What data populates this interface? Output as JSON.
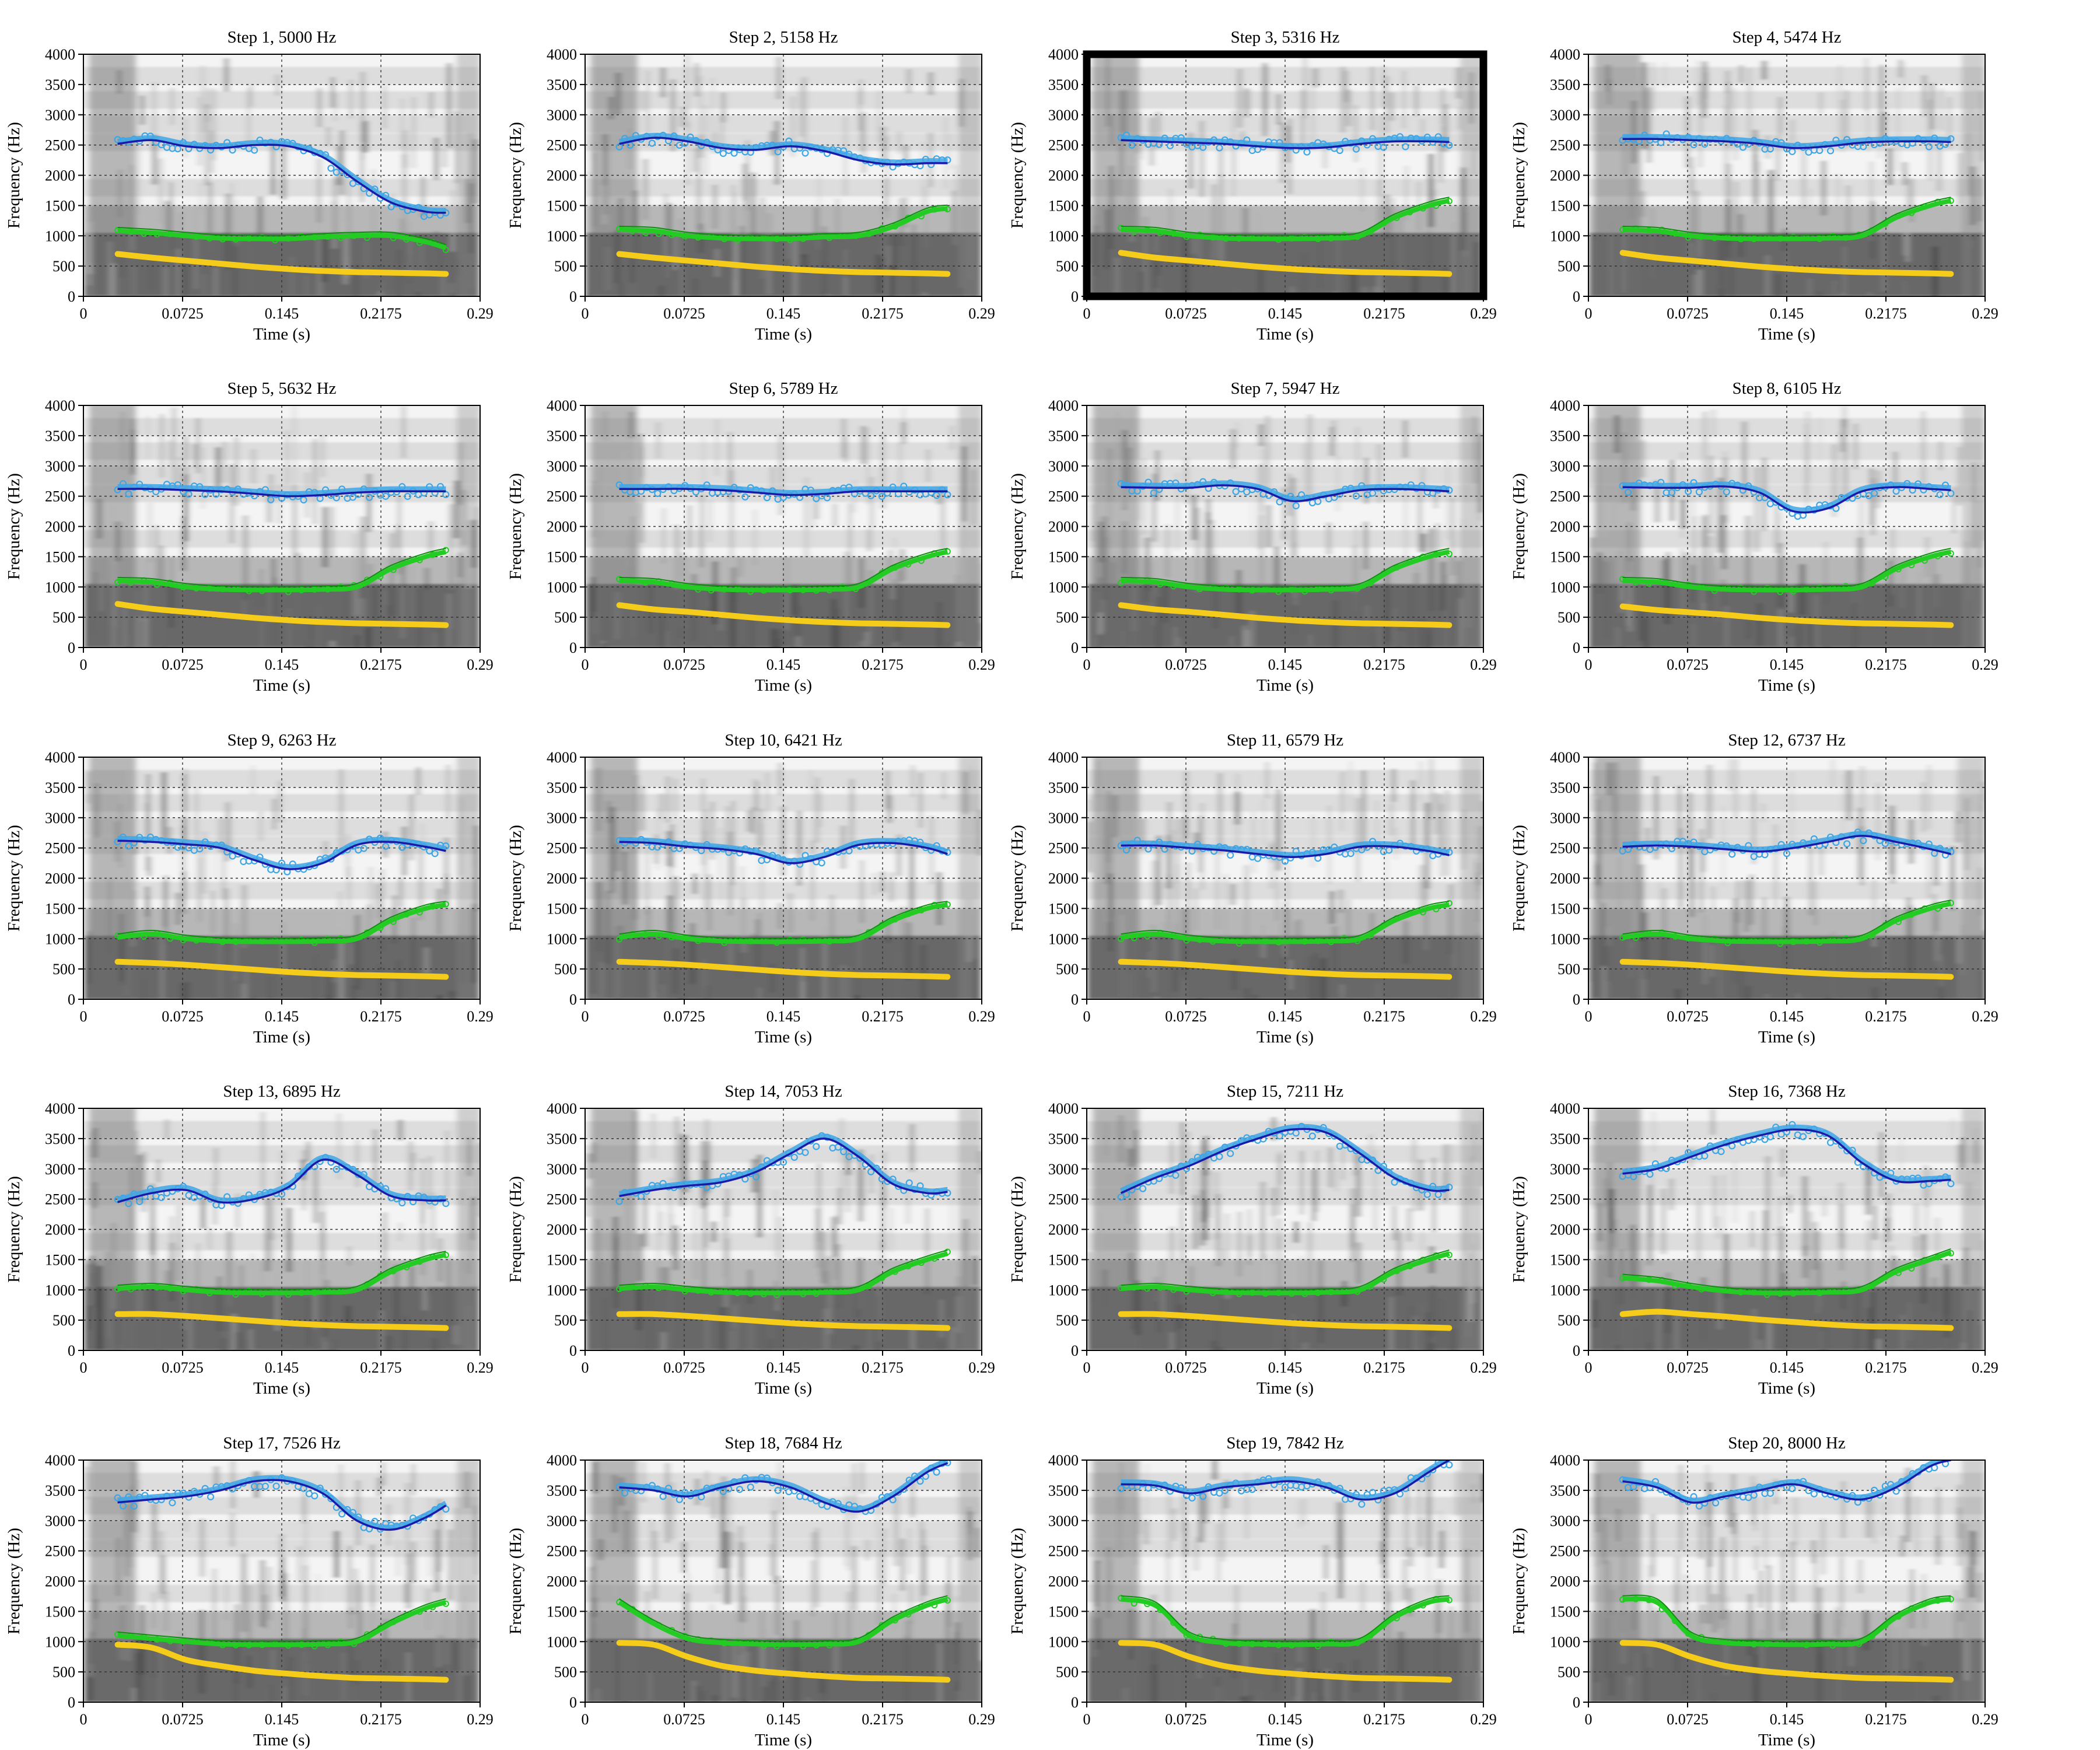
{
  "chart_data": {
    "type": "line",
    "layout": "small-multiples grid, 5 rows x 4 columns",
    "background": "grayscale spectrogram",
    "xlabel": "Time (s)",
    "ylabel": "Frequency (Hz)",
    "xlim": [
      0,
      0.29
    ],
    "ylim": [
      0,
      4000
    ],
    "xticks": [
      "0",
      "0.0725",
      "0.145",
      "0.2175",
      "0.29"
    ],
    "yticks": [
      "0",
      "500",
      "1000",
      "1500",
      "2000",
      "2500",
      "3000",
      "3500",
      "4000"
    ],
    "grid": true,
    "highlighted_panel": "Step 3, 5316 Hz",
    "colors": {
      "F1": "#f5cc1a",
      "F2": "#22cc22",
      "F3_measured": "#3fa6e6",
      "F3_smoothed": "#1a1aa8"
    },
    "series_x": [
      0.025,
      0.05,
      0.075,
      0.1,
      0.125,
      0.15,
      0.175,
      0.2,
      0.225,
      0.25,
      0.265
    ],
    "panels": [
      {
        "title": "Step 1, 5000 Hz",
        "F1": [
          700,
          640,
          590,
          540,
          490,
          450,
          420,
          400,
          390,
          380,
          370
        ],
        "F2": [
          1080,
          1050,
          1000,
          960,
          950,
          950,
          980,
          1000,
          1000,
          900,
          800
        ],
        "F3": [
          2520,
          2580,
          2480,
          2450,
          2500,
          2480,
          2300,
          1900,
          1550,
          1400,
          1380
        ]
      },
      {
        "title": "Step 2, 5158 Hz",
        "F1": [
          700,
          640,
          590,
          540,
          490,
          450,
          420,
          400,
          390,
          380,
          370
        ],
        "F2": [
          1100,
          1080,
          1000,
          960,
          950,
          950,
          980,
          1000,
          1150,
          1400,
          1450
        ],
        "F3": [
          2520,
          2620,
          2560,
          2450,
          2420,
          2480,
          2400,
          2250,
          2180,
          2200,
          2200
        ]
      },
      {
        "title": "Step 3, 5316 Hz",
        "F1": [
          720,
          640,
          590,
          540,
          490,
          450,
          420,
          400,
          390,
          380,
          370
        ],
        "F2": [
          1100,
          1080,
          1000,
          960,
          950,
          950,
          960,
          1000,
          1300,
          1500,
          1580
        ],
        "F3": [
          2580,
          2560,
          2540,
          2520,
          2480,
          2450,
          2460,
          2520,
          2560,
          2560,
          2550
        ]
      },
      {
        "title": "Step 4, 5474 Hz",
        "F1": [
          720,
          640,
          590,
          540,
          490,
          450,
          420,
          400,
          390,
          380,
          370
        ],
        "F2": [
          1100,
          1080,
          1000,
          960,
          950,
          950,
          960,
          1000,
          1300,
          1500,
          1580
        ],
        "F3": [
          2600,
          2600,
          2580,
          2560,
          2520,
          2450,
          2480,
          2540,
          2560,
          2560,
          2550
        ]
      },
      {
        "title": "Step 5, 5632 Hz",
        "F1": [
          720,
          640,
          590,
          540,
          490,
          450,
          420,
          400,
          390,
          380,
          370
        ],
        "F2": [
          1100,
          1080,
          1000,
          960,
          950,
          950,
          960,
          1000,
          1300,
          1500,
          1580
        ],
        "F3": [
          2620,
          2620,
          2600,
          2580,
          2540,
          2500,
          2520,
          2560,
          2580,
          2580,
          2580
        ]
      },
      {
        "title": "Step 6, 5789 Hz",
        "F1": [
          700,
          630,
          590,
          540,
          490,
          450,
          420,
          400,
          390,
          380,
          370
        ],
        "F2": [
          1100,
          1080,
          1000,
          960,
          950,
          950,
          960,
          1000,
          1300,
          1500,
          1580
        ],
        "F3": [
          2620,
          2620,
          2620,
          2600,
          2560,
          2520,
          2540,
          2580,
          2580,
          2580,
          2580
        ]
      },
      {
        "title": "Step 7, 5947 Hz",
        "F1": [
          700,
          630,
          590,
          540,
          490,
          450,
          420,
          400,
          390,
          380,
          370
        ],
        "F2": [
          1100,
          1080,
          1000,
          960,
          950,
          950,
          960,
          1000,
          1300,
          1500,
          1580
        ],
        "F3": [
          2650,
          2640,
          2640,
          2680,
          2620,
          2420,
          2500,
          2600,
          2620,
          2600,
          2580
        ]
      },
      {
        "title": "Step 8, 6105 Hz",
        "F1": [
          680,
          620,
          580,
          540,
          490,
          450,
          420,
          400,
          390,
          380,
          370
        ],
        "F2": [
          1100,
          1080,
          1000,
          960,
          950,
          950,
          960,
          1000,
          1300,
          1500,
          1580
        ],
        "F3": [
          2650,
          2640,
          2640,
          2660,
          2560,
          2250,
          2300,
          2580,
          2650,
          2620,
          2600
        ]
      },
      {
        "title": "Step 9, 6263 Hz",
        "F1": [
          620,
          600,
          570,
          530,
          490,
          450,
          420,
          400,
          390,
          380,
          370
        ],
        "F2": [
          1020,
          1080,
          1000,
          960,
          950,
          950,
          960,
          1000,
          1300,
          1500,
          1560
        ],
        "F3": [
          2620,
          2600,
          2560,
          2500,
          2300,
          2150,
          2250,
          2550,
          2600,
          2520,
          2450
        ]
      },
      {
        "title": "Step 10, 6421 Hz",
        "F1": [
          620,
          600,
          570,
          530,
          490,
          450,
          420,
          400,
          390,
          380,
          370
        ],
        "F2": [
          1020,
          1080,
          1000,
          960,
          950,
          950,
          960,
          1000,
          1300,
          1500,
          1560
        ],
        "F3": [
          2600,
          2580,
          2520,
          2480,
          2400,
          2250,
          2350,
          2550,
          2580,
          2500,
          2400
        ]
      },
      {
        "title": "Step 11, 6579 Hz",
        "F1": [
          620,
          600,
          570,
          530,
          490,
          450,
          420,
          400,
          390,
          380,
          370
        ],
        "F2": [
          1020,
          1080,
          1000,
          960,
          950,
          950,
          960,
          1000,
          1300,
          1500,
          1560
        ],
        "F3": [
          2540,
          2540,
          2500,
          2460,
          2400,
          2350,
          2400,
          2520,
          2520,
          2450,
          2380
        ]
      },
      {
        "title": "Step 12, 6737 Hz",
        "F1": [
          620,
          600,
          570,
          530,
          490,
          450,
          420,
          400,
          390,
          380,
          370
        ],
        "F2": [
          1020,
          1080,
          1000,
          960,
          950,
          950,
          960,
          1000,
          1300,
          1500,
          1580
        ],
        "F3": [
          2520,
          2540,
          2520,
          2480,
          2440,
          2500,
          2600,
          2700,
          2600,
          2480,
          2400
        ]
      },
      {
        "title": "Step 13, 6895 Hz",
        "F1": [
          600,
          600,
          570,
          530,
          490,
          450,
          420,
          400,
          390,
          380,
          370
        ],
        "F2": [
          1020,
          1050,
          1000,
          960,
          950,
          950,
          960,
          1000,
          1300,
          1500,
          1580
        ],
        "F3": [
          2450,
          2600,
          2650,
          2450,
          2500,
          2700,
          3150,
          2900,
          2550,
          2480,
          2480
        ]
      },
      {
        "title": "Step 14, 7053 Hz",
        "F1": [
          600,
          600,
          570,
          530,
          490,
          450,
          420,
          400,
          390,
          380,
          370
        ],
        "F2": [
          1020,
          1050,
          1000,
          960,
          950,
          950,
          960,
          1000,
          1300,
          1500,
          1600
        ],
        "F3": [
          2550,
          2650,
          2720,
          2780,
          2950,
          3250,
          3500,
          3200,
          2750,
          2600,
          2620
        ]
      },
      {
        "title": "Step 15, 7211 Hz",
        "F1": [
          600,
          600,
          570,
          530,
          490,
          450,
          420,
          400,
          390,
          380,
          370
        ],
        "F2": [
          1020,
          1050,
          1000,
          960,
          950,
          950,
          960,
          1000,
          1300,
          1500,
          1600
        ],
        "F3": [
          2600,
          2850,
          3050,
          3300,
          3500,
          3650,
          3600,
          3250,
          2850,
          2650,
          2650
        ]
      },
      {
        "title": "Step 16, 7368 Hz",
        "F1": [
          600,
          640,
          600,
          560,
          510,
          470,
          430,
          400,
          390,
          380,
          370
        ],
        "F2": [
          1200,
          1150,
          1050,
          980,
          950,
          950,
          960,
          1000,
          1300,
          1500,
          1620
        ],
        "F3": [
          2920,
          3000,
          3200,
          3400,
          3550,
          3650,
          3550,
          3100,
          2800,
          2800,
          2820
        ]
      },
      {
        "title": "Step 17, 7526 Hz",
        "F1": [
          950,
          900,
          700,
          600,
          520,
          470,
          430,
          400,
          390,
          380,
          370
        ],
        "F2": [
          1100,
          1050,
          1000,
          960,
          950,
          950,
          960,
          1000,
          1300,
          1550,
          1650
        ],
        "F3": [
          3300,
          3350,
          3400,
          3500,
          3650,
          3650,
          3450,
          3000,
          2850,
          3050,
          3250
        ]
      },
      {
        "title": "Step 18, 7684 Hz",
        "F1": [
          980,
          950,
          750,
          600,
          520,
          470,
          430,
          400,
          390,
          380,
          370
        ],
        "F2": [
          1650,
          1300,
          1050,
          980,
          960,
          950,
          960,
          1000,
          1350,
          1600,
          1700
        ],
        "F3": [
          3550,
          3500,
          3400,
          3550,
          3650,
          3550,
          3300,
          3150,
          3400,
          3800,
          3950
        ]
      },
      {
        "title": "Step 19, 7842 Hz",
        "F1": [
          980,
          950,
          750,
          600,
          520,
          470,
          430,
          400,
          390,
          380,
          370
        ],
        "F2": [
          1700,
          1600,
          1100,
          980,
          960,
          950,
          960,
          1000,
          1400,
          1650,
          1700
        ],
        "F3": [
          3600,
          3580,
          3450,
          3550,
          3600,
          3650,
          3550,
          3350,
          3450,
          3800,
          4000
        ]
      },
      {
        "title": "Step 20, 8000 Hz",
        "F1": [
          980,
          950,
          750,
          600,
          520,
          470,
          430,
          400,
          390,
          380,
          370
        ],
        "F2": [
          1700,
          1650,
          1100,
          980,
          960,
          950,
          960,
          1000,
          1400,
          1650,
          1700
        ],
        "F3": [
          3650,
          3550,
          3300,
          3400,
          3500,
          3600,
          3450,
          3350,
          3550,
          3900,
          4000
        ]
      }
    ]
  }
}
